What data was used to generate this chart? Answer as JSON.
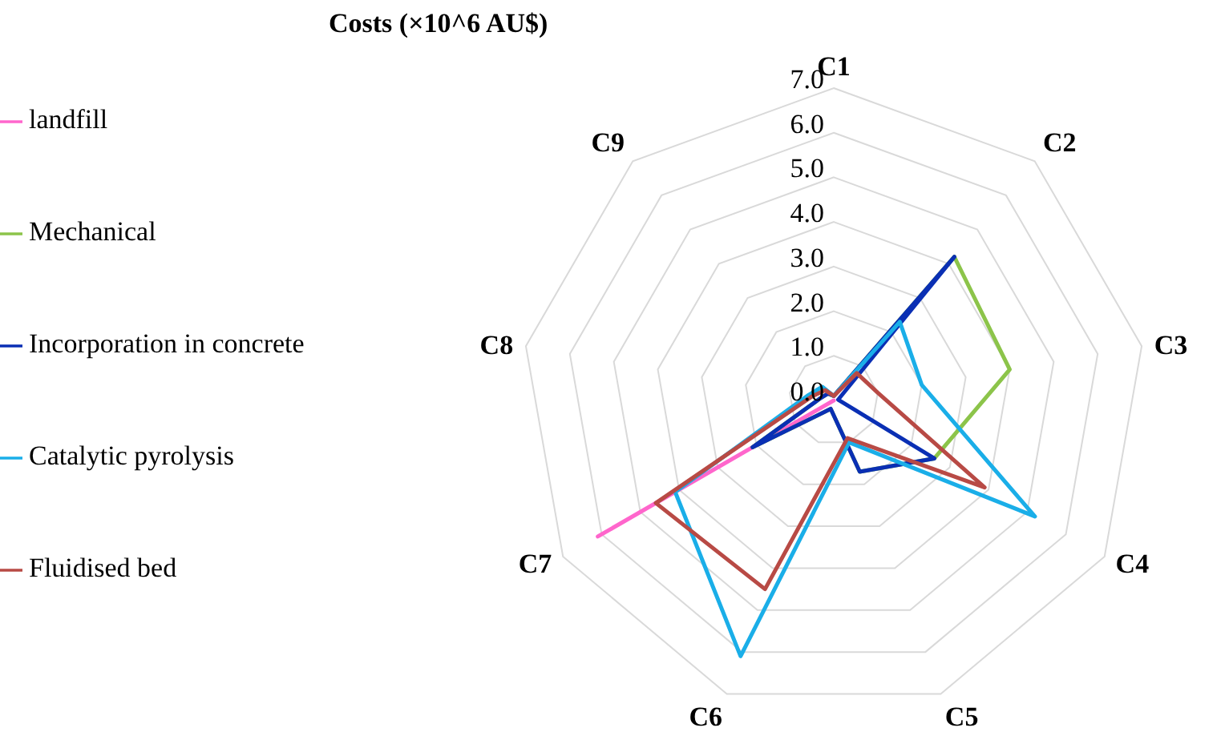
{
  "chart_data": {
    "type": "radar",
    "title": "Costs (×10^6 AU$)",
    "categories": [
      "C1",
      "C2",
      "C3",
      "C4",
      "C5",
      "C6",
      "C7",
      "C8",
      "C9"
    ],
    "ylim": [
      0,
      7
    ],
    "yticks": [
      {
        "value": 0,
        "label": "0.0"
      },
      {
        "value": 1,
        "label": "1.0"
      },
      {
        "value": 2,
        "label": "2.0"
      },
      {
        "value": 3,
        "label": "3.0"
      },
      {
        "value": 4,
        "label": "4.0"
      },
      {
        "value": 5,
        "label": "5.0"
      },
      {
        "value": 6,
        "label": "6.0"
      },
      {
        "value": 7,
        "label": "7.0"
      }
    ],
    "legend": "left",
    "marker": "none",
    "grid": true,
    "series": [
      {
        "name": "landfill",
        "color": "#ff66cc",
        "values": [
          0,
          0,
          0,
          0,
          0,
          0,
          6.1,
          0,
          0
        ]
      },
      {
        "name": "Mechanical",
        "color": "#8cc44a",
        "values": [
          0.1,
          4.2,
          4.0,
          2.6,
          1.7,
          0.2,
          2.1,
          0.3,
          0.2
        ]
      },
      {
        "name": "Incorporation in concrete",
        "color": "#0a2fb4",
        "values": [
          0.1,
          4.2,
          0.1,
          2.6,
          1.7,
          0.2,
          2.1,
          0.3,
          0.2
        ]
      },
      {
        "name": "Catalytic pyrolysis",
        "color": "#1aaee8",
        "values": [
          0.1,
          2.3,
          2.0,
          5.2,
          1.0,
          6.1,
          4.1,
          0.6,
          0.4
        ]
      },
      {
        "name": "Fluidised bed",
        "color": "#b84a45",
        "values": [
          0.1,
          0.8,
          1.0,
          3.9,
          0.9,
          4.5,
          4.6,
          0.5,
          0.3
        ]
      }
    ]
  }
}
